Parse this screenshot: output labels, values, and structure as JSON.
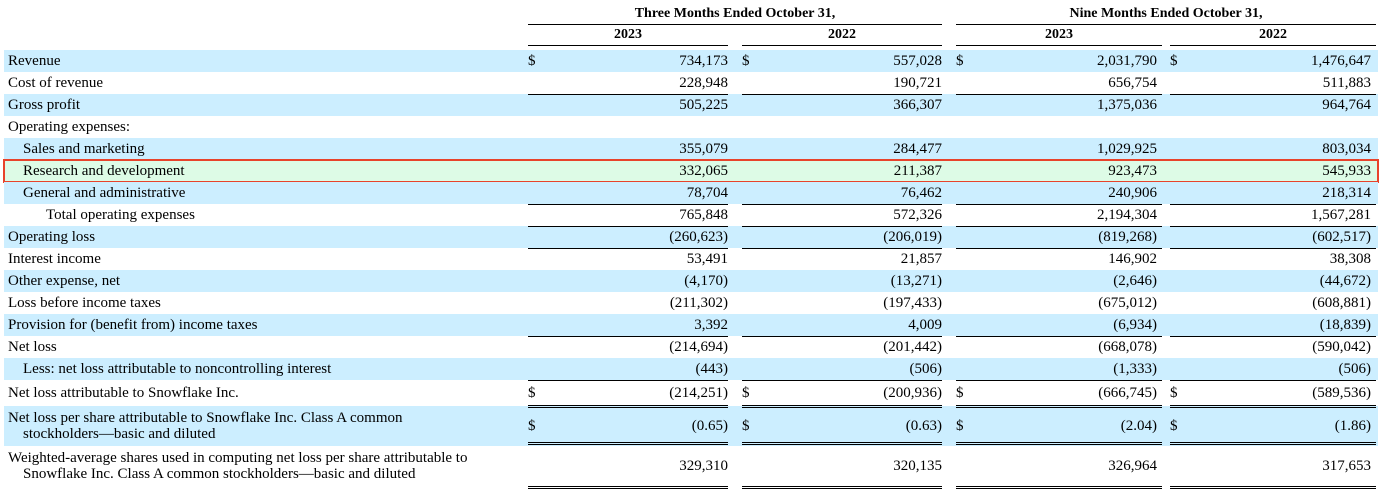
{
  "headers": {
    "three_months": "Three Months Ended October 31,",
    "nine_months": "Nine Months Ended October 31,",
    "years": [
      "2023",
      "2022",
      "2023",
      "2022"
    ]
  },
  "currency_symbol": "$",
  "rows": [
    {
      "label": "Revenue",
      "values": [
        "734,173",
        "557,028",
        "2,031,790",
        "1,476,647"
      ],
      "shaded": true,
      "dollar": true
    },
    {
      "label": "Cost of revenue",
      "values": [
        "228,948",
        "190,721",
        "656,754",
        "511,883"
      ],
      "shaded": false
    },
    {
      "label": "Gross profit",
      "values": [
        "505,225",
        "366,307",
        "1,375,036",
        "964,764"
      ],
      "shaded": true
    },
    {
      "label": "Operating expenses:",
      "values": [
        "",
        "",
        "",
        ""
      ],
      "shaded": false
    },
    {
      "label": "Sales and marketing",
      "values": [
        "355,079",
        "284,477",
        "1,029,925",
        "803,034"
      ],
      "shaded": true,
      "indent": 1
    },
    {
      "label": "Research and development",
      "values": [
        "332,065",
        "211,387",
        "923,473",
        "545,933"
      ],
      "shaded": false,
      "indent": 1,
      "highlighted": true
    },
    {
      "label": "General and administrative",
      "values": [
        "78,704",
        "76,462",
        "240,906",
        "218,314"
      ],
      "shaded": true,
      "indent": 1
    },
    {
      "label": "Total operating expenses",
      "values": [
        "765,848",
        "572,326",
        "2,194,304",
        "1,567,281"
      ],
      "shaded": false,
      "indent": 2
    },
    {
      "label": "Operating loss",
      "values": [
        "(260,623)",
        "(206,019)",
        "(819,268)",
        "(602,517)"
      ],
      "shaded": true
    },
    {
      "label": "Interest income",
      "values": [
        "53,491",
        "21,857",
        "146,902",
        "38,308"
      ],
      "shaded": false
    },
    {
      "label": "Other expense, net",
      "values": [
        "(4,170)",
        "(13,271)",
        "(2,646)",
        "(44,672)"
      ],
      "shaded": true
    },
    {
      "label": "Loss before income taxes",
      "values": [
        "(211,302)",
        "(197,433)",
        "(675,012)",
        "(608,881)"
      ],
      "shaded": false
    },
    {
      "label": "Provision for (benefit from) income taxes",
      "values": [
        "3,392",
        "4,009",
        "(6,934)",
        "(18,839)"
      ],
      "shaded": true
    },
    {
      "label": "Net loss",
      "values": [
        "(214,694)",
        "(201,442)",
        "(668,078)",
        "(590,042)"
      ],
      "shaded": false
    },
    {
      "label": "Less: net loss attributable to noncontrolling interest",
      "values": [
        "(443)",
        "(506)",
        "(1,333)",
        "(506)"
      ],
      "shaded": true,
      "indent": 1
    },
    {
      "label": "Net loss attributable to Snowflake Inc.",
      "values": [
        "(214,251)",
        "(200,936)",
        "(666,745)",
        "(589,536)"
      ],
      "shaded": false,
      "dollar": true
    },
    {
      "label": "Net loss per share attributable to Snowflake Inc. Class A common",
      "label2": "stockholders—basic and diluted",
      "values": [
        "(0.65)",
        "(0.63)",
        "(2.04)",
        "(1.86)"
      ],
      "shaded": true,
      "dollar": true
    },
    {
      "label": "Weighted-average shares used in computing net loss per share attributable to",
      "label2": "Snowflake Inc. Class A common stockholders—basic and diluted",
      "values": [
        "329,310",
        "320,135",
        "326,964",
        "317,653"
      ],
      "shaded": false
    }
  ]
}
